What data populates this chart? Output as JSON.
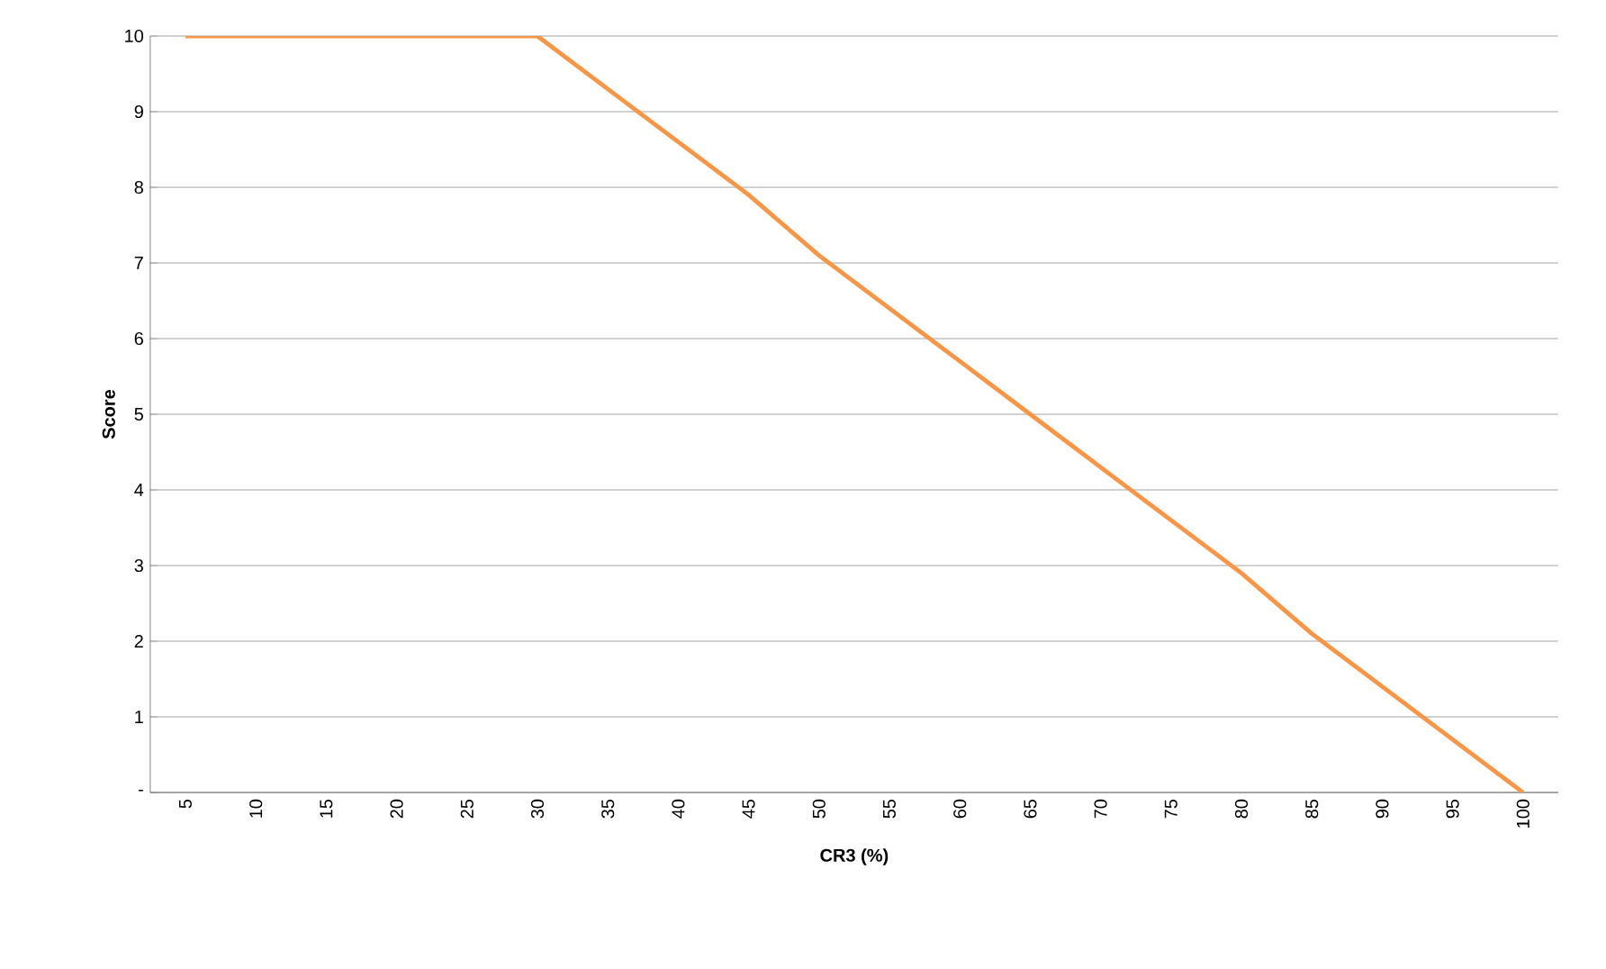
{
  "chart_data": {
    "type": "line",
    "xlabel": "CR3 (%)",
    "ylabel": "Score",
    "categories": [
      "5",
      "10",
      "15",
      "20",
      "25",
      "30",
      "35",
      "40",
      "45",
      "50",
      "55",
      "60",
      "65",
      "70",
      "75",
      "80",
      "85",
      "90",
      "95",
      "100"
    ],
    "series": [
      {
        "color": "#f79646",
        "values": [
          10,
          10,
          10,
          10,
          10,
          10,
          9.3,
          8.6,
          7.9,
          7.1,
          6.4,
          5.7,
          5,
          4.3,
          3.6,
          2.9,
          2.1,
          1.4,
          0.7,
          0
        ]
      }
    ],
    "ylim": [
      0,
      10
    ],
    "yticks": [
      {
        "value": 0,
        "label": "-"
      },
      1,
      2,
      3,
      4,
      5,
      6,
      7,
      8,
      9,
      10
    ],
    "grid": "y",
    "legend": false,
    "marker": "none",
    "line_style": "solid"
  }
}
